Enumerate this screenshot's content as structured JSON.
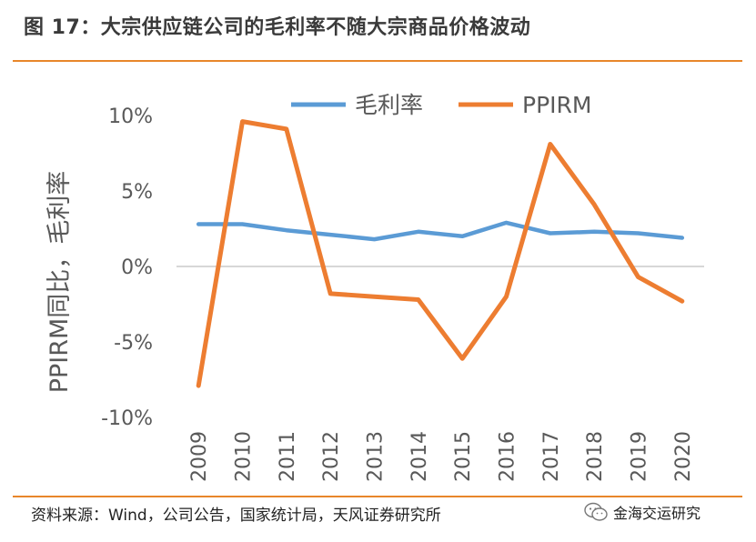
{
  "header": {
    "title": "图 17：大宗供应链公司的毛利率不随大宗商品价格波动"
  },
  "footer": {
    "source": "资料来源：Wind，公司公告，国家统计局，天风证券研究所",
    "brand": "金海交运研究"
  },
  "colors": {
    "accent": "#e8862a",
    "margin_series": "#5b9bd5",
    "ppirm_series": "#ed7d31",
    "axis_text": "#595959"
  },
  "chart_data": {
    "type": "line",
    "title": "",
    "xlabel": "",
    "ylabel": "PPIRM同比，毛利率",
    "categories": [
      "2009",
      "2010",
      "2011",
      "2012",
      "2013",
      "2014",
      "2015",
      "2016",
      "2017",
      "2018",
      "2019",
      "2020"
    ],
    "series": [
      {
        "name": "毛利率",
        "color": "#5b9bd5",
        "values": [
          2.8,
          2.8,
          2.4,
          2.1,
          1.8,
          2.3,
          2.0,
          2.9,
          2.2,
          2.3,
          2.2,
          1.9
        ]
      },
      {
        "name": "PPIRM",
        "color": "#ed7d31",
        "values": [
          -7.9,
          9.6,
          9.1,
          -1.8,
          -2.0,
          -2.2,
          -6.1,
          -2.0,
          8.1,
          4.1,
          -0.7,
          -2.3
        ]
      }
    ],
    "ylim": [
      -10,
      10
    ],
    "yticks": [
      -10,
      -5,
      0,
      5,
      10
    ],
    "ytick_labels": [
      "-10%",
      "-5%",
      "0%",
      "5%",
      "10%"
    ],
    "grid": false,
    "legend_position": "top"
  }
}
